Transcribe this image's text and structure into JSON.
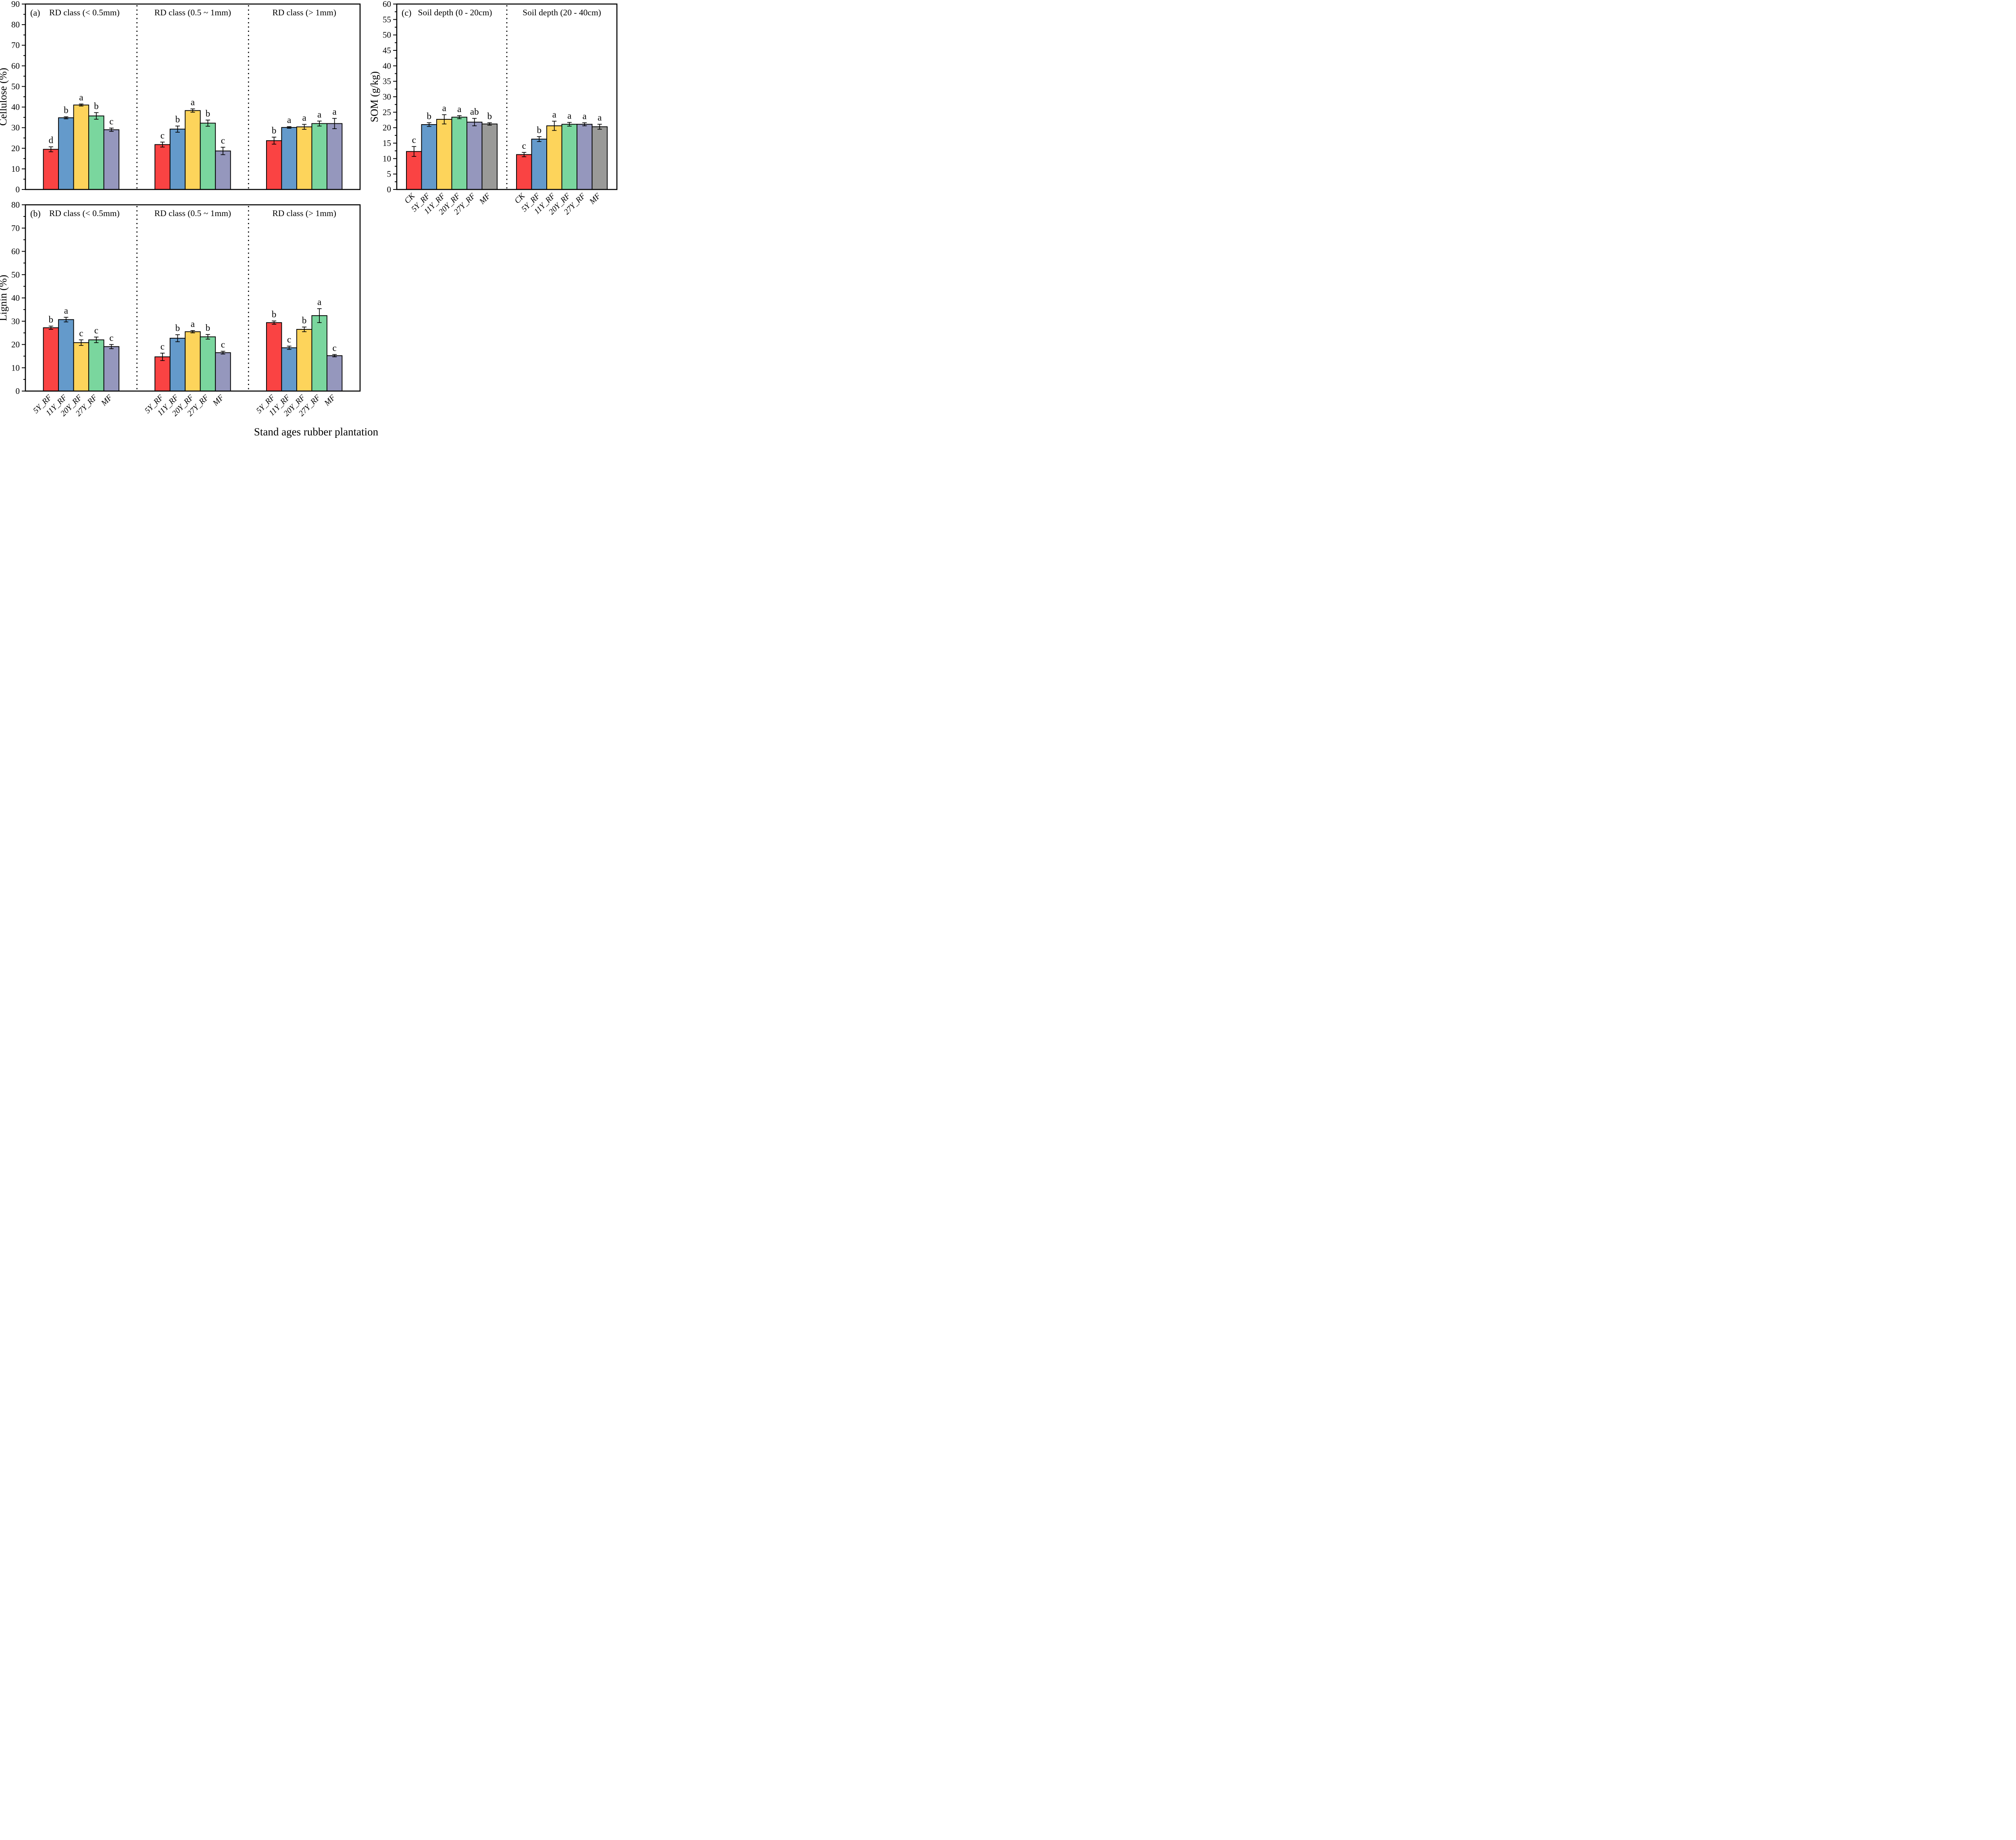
{
  "figure": {
    "xaxis_title": "Stand ages rubber plantation"
  },
  "colors": {
    "series": [
      "#FA4343",
      "#649ACB",
      "#FDD45B",
      "#7AD69E",
      "#9597BD",
      "#9A9A98"
    ],
    "edge": "#000000"
  },
  "chart_data": [
    {
      "id": "a",
      "type": "bar",
      "panel_label": "(a)",
      "ylabel": "Cellulose (%)",
      "ylim": [
        0,
        90
      ],
      "ytick_step": 10,
      "yminor_step": 5,
      "show_x_labels": false,
      "grid": false,
      "groups": [
        {
          "title": "RD class (< 0.5mm)",
          "categories": [
            "5Y_RF",
            "11Y_RF",
            "20Y_RF",
            "27Y_RF",
            "MF"
          ],
          "values": [
            19.5,
            34.8,
            41.0,
            35.7,
            29.0
          ],
          "errors": [
            1.2,
            0.5,
            0.5,
            1.6,
            0.8
          ],
          "letters": [
            "d",
            "b",
            "a",
            "b",
            "c"
          ]
        },
        {
          "title": "RD class (0.5 ~ 1mm)",
          "categories": [
            "5Y_RF",
            "11Y_RF",
            "20Y_RF",
            "27Y_RF",
            "MF"
          ],
          "values": [
            21.8,
            29.3,
            38.3,
            32.2,
            18.7
          ],
          "errors": [
            1.2,
            1.5,
            0.8,
            1.5,
            1.8
          ],
          "letters": [
            "c",
            "b",
            "a",
            "b",
            "c"
          ]
        },
        {
          "title": "RD class (> 1mm)",
          "categories": [
            "5Y_RF",
            "11Y_RF",
            "20Y_RF",
            "27Y_RF",
            "MF"
          ],
          "values": [
            23.7,
            30.1,
            30.4,
            32.0,
            32.0
          ],
          "errors": [
            1.7,
            0.4,
            1.2,
            1.2,
            2.5
          ],
          "letters": [
            "b",
            "a",
            "a",
            "a",
            "a"
          ]
        }
      ]
    },
    {
      "id": "b",
      "type": "bar",
      "panel_label": "(b)",
      "ylabel": "Lignin (%)",
      "ylim": [
        0,
        80
      ],
      "ytick_step": 10,
      "yminor_step": 5,
      "show_x_labels": true,
      "grid": false,
      "groups": [
        {
          "title": "RD class (< 0.5mm)",
          "categories": [
            "5Y_RF",
            "11Y_RF",
            "20Y_RF",
            "27Y_RF",
            "MF"
          ],
          "values": [
            27.2,
            30.7,
            20.8,
            22.0,
            19.1
          ],
          "errors": [
            0.7,
            1.0,
            1.2,
            1.2,
            0.9
          ],
          "letters": [
            "b",
            "a",
            "c",
            "c",
            "c"
          ]
        },
        {
          "title": "RD class (0.5 ~ 1mm)",
          "categories": [
            "5Y_RF",
            "11Y_RF",
            "20Y_RF",
            "27Y_RF",
            "MF"
          ],
          "values": [
            14.7,
            22.7,
            25.5,
            23.3,
            16.5
          ],
          "errors": [
            1.6,
            1.5,
            0.5,
            1.0,
            0.6
          ],
          "letters": [
            "c",
            "b",
            "a",
            "b",
            "c"
          ]
        },
        {
          "title": "RD class (> 1mm)",
          "categories": [
            "5Y_RF",
            "11Y_RF",
            "20Y_RF",
            "27Y_RF",
            "MF"
          ],
          "values": [
            29.4,
            18.6,
            26.5,
            32.4,
            15.2
          ],
          "errors": [
            0.7,
            0.7,
            1.0,
            3.0,
            0.5
          ],
          "letters": [
            "b",
            "c",
            "b",
            "a",
            "c"
          ]
        }
      ]
    },
    {
      "id": "c",
      "type": "bar",
      "panel_label": "(c)",
      "ylabel": "SOM (g/kg)",
      "ylim": [
        0,
        60
      ],
      "ytick_step": 5,
      "yminor_step": 2.5,
      "show_x_labels": true,
      "grid": false,
      "groups": [
        {
          "title": "Soil depth (0 - 20cm)",
          "categories": [
            "CK",
            "5Y_RF",
            "11Y_RF",
            "20Y_RF",
            "27Y_RF",
            "MF"
          ],
          "values": [
            12.3,
            21.0,
            22.7,
            23.4,
            21.8,
            21.2
          ],
          "errors": [
            1.6,
            0.6,
            1.5,
            0.5,
            1.2,
            0.4
          ],
          "letters": [
            "c",
            "b",
            "a",
            "a",
            "ab",
            "b"
          ]
        },
        {
          "title": "Soil depth (20 - 40cm)",
          "categories": [
            "CK",
            "5Y_RF",
            "11Y_RF",
            "20Y_RF",
            "27Y_RF",
            "MF"
          ],
          "values": [
            11.3,
            16.3,
            20.6,
            21.1,
            21.1,
            20.3
          ],
          "errors": [
            0.7,
            0.8,
            1.5,
            0.6,
            0.5,
            0.8
          ],
          "letters": [
            "c",
            "b",
            "a",
            "a",
            "a",
            "a"
          ]
        }
      ]
    }
  ]
}
